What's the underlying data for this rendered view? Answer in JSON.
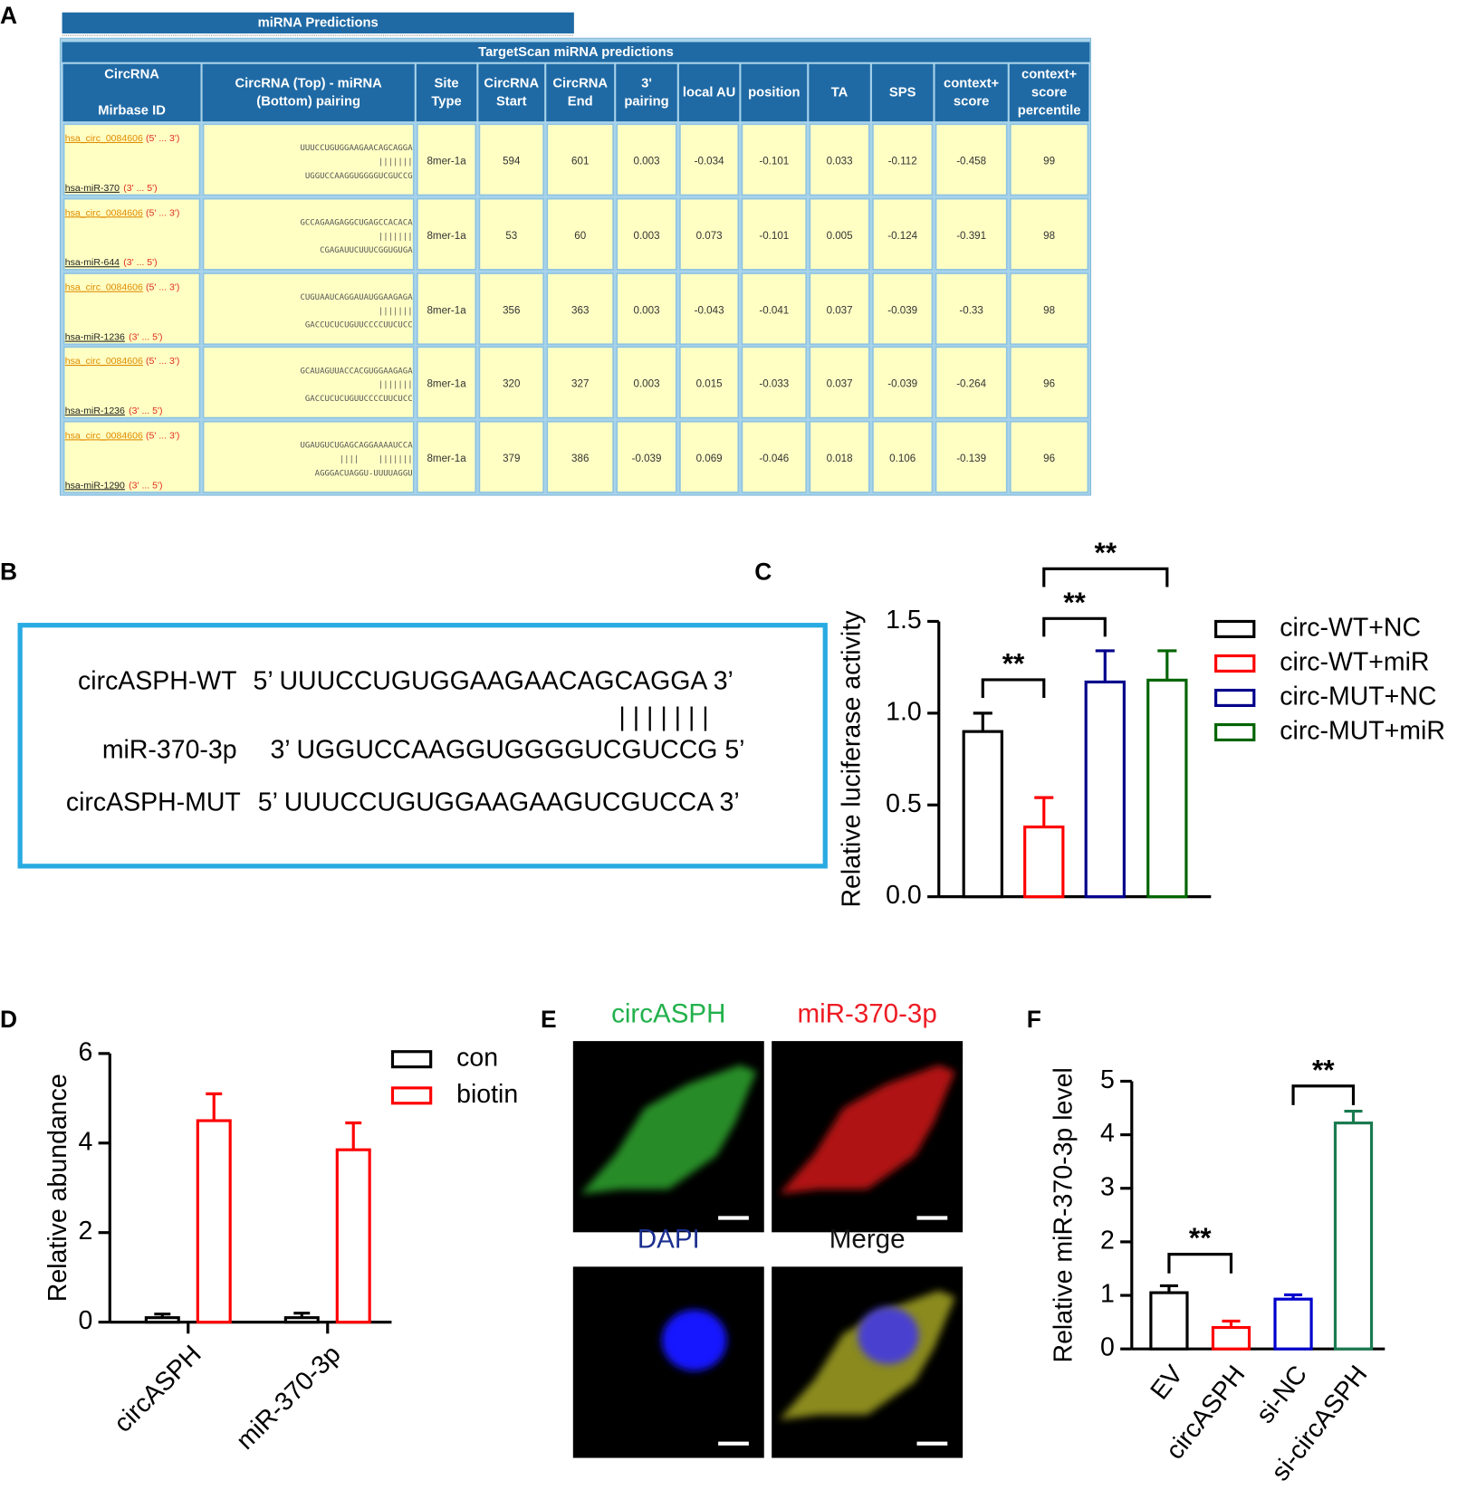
{
  "panels": {
    "A": {
      "label": "A",
      "header": "miRNA Predictions",
      "table": {
        "title": "TargetScan miRNA predictions",
        "columns": [
          [
            "CircRNA",
            "Mirbase ID"
          ],
          [
            "CircRNA (Top) - miRNA",
            "(Bottom) pairing"
          ],
          [
            "Site",
            "Type"
          ],
          [
            "CircRNA",
            "Start"
          ],
          [
            "CircRNA",
            "End"
          ],
          [
            "3'",
            "pairing"
          ],
          [
            "local AU"
          ],
          [
            "position"
          ],
          [
            "TA"
          ],
          [
            "SPS"
          ],
          [
            "context+",
            "score"
          ],
          [
            "context+",
            "score",
            "percentile"
          ]
        ],
        "rows": [
          {
            "circrna": "hsa_circ_0084606",
            "circrna_ends": "(5' ... 3')",
            "mirna": "hsa-miR-370",
            "mirna_ends": "(3' ... 5')",
            "top": "UUUCCUGUGGAAGAACAGCAGGA",
            "pairs": "|||||||",
            "bottom": "UGGUCCAAGGUGGGGUCGUCCG",
            "cells": [
              "8mer-1a",
              594,
              601,
              0.003,
              -0.034,
              -0.101,
              0.033,
              -0.112,
              -0.458,
              99
            ]
          },
          {
            "circrna": "hsa_circ_0084606",
            "circrna_ends": "(5' ... 3')",
            "mirna": "hsa-miR-644",
            "mirna_ends": "(3' ... 5')",
            "top": "GCCAGAAGAGGCUGAGCCACACA",
            "pairs": "|||||||",
            "bottom": "CGAGAUUCUUUCGGUGUGA",
            "cells": [
              "8mer-1a",
              53,
              60,
              0.003,
              0.073,
              -0.101,
              0.005,
              -0.124,
              -0.391,
              98
            ]
          },
          {
            "circrna": "hsa_circ_0084606",
            "circrna_ends": "(5' ... 3')",
            "mirna": "hsa-miR-1236",
            "mirna_ends": "(3' ... 5')",
            "top": "CUGUAAUCAGGAUAUGGAAGAGA",
            "pairs": "|||||||",
            "bottom": "GACCUCUCUGUUCCCCUUCUCC",
            "cells": [
              "8mer-1a",
              356,
              363,
              0.003,
              -0.043,
              -0.041,
              0.037,
              -0.039,
              -0.33,
              98
            ]
          },
          {
            "circrna": "hsa_circ_0084606",
            "circrna_ends": "(5' ... 3')",
            "mirna": "hsa-miR-1236",
            "mirna_ends": "(3' ... 5')",
            "top": "GCAUAGUUACCACGUGGAAGAGA",
            "pairs": "|||||||",
            "bottom": "GACCUCUCUGUUCCCCUUCUCC",
            "cells": [
              "8mer-1a",
              320,
              327,
              0.003,
              0.015,
              -0.033,
              0.037,
              -0.039,
              -0.264,
              96
            ]
          },
          {
            "circrna": "hsa_circ_0084606",
            "circrna_ends": "(5' ... 3')",
            "mirna": "hsa-miR-1290",
            "mirna_ends": "(3' ... 5')",
            "top": "UGAUGUCUGAGCAGGAAAAUCCA",
            "pairs": "||||    |||||||",
            "bottom": "AGGGACUAGGU-UUUUAGGU",
            "cells": [
              "8mer-1a",
              379,
              386,
              -0.039,
              0.069,
              -0.046,
              0.018,
              0.106,
              -0.139,
              96
            ]
          }
        ]
      }
    },
    "B": {
      "label": "B",
      "rows": [
        {
          "name": "circASPH-WT",
          "seq": "5’ UUUCCUGUGGAAGAACAGCAGGA 3’"
        },
        {
          "name": "miR-370-3p",
          "seq": "3’ UGGUCCAAGGUGGGGUCGUCCG 5’"
        },
        {
          "name": "circASPH-MUT",
          "seq": "5’ UUUCCUGUGGAAGAAGUCGUCCA 3’"
        }
      ],
      "pairs": "| | | | | | |"
    },
    "E": {
      "label": "E",
      "images": [
        {
          "title": "circASPH",
          "color": "#22b14c"
        },
        {
          "title": "miR-370-3p",
          "color": "#ed1c24"
        },
        {
          "title": "DAPI",
          "color": "#1b2f8f"
        },
        {
          "title": "Merge",
          "color": "#111111"
        }
      ]
    }
  },
  "chart_data": [
    {
      "label": "C",
      "type": "bar",
      "ylabel": "Relative luciferase activity",
      "ylim": [
        0,
        1.5
      ],
      "yticks": [
        {
          "value": 0,
          "label": "0.0"
        },
        {
          "value": 0.5,
          "label": "0.5"
        },
        {
          "value": 1,
          "label": "1.0"
        },
        {
          "value": 1.5,
          "label": "1.5"
        }
      ],
      "series": [
        {
          "name": "circ-WT+NC",
          "color": "#000000",
          "values": [
            0.9
          ],
          "errors": [
            0.1
          ]
        },
        {
          "name": "circ-WT+miR",
          "color": "#ff0000",
          "values": [
            0.38
          ],
          "errors": [
            0.16
          ]
        },
        {
          "name": "circ-MUT+NC",
          "color": "#00008b",
          "values": [
            1.17
          ],
          "errors": [
            0.17
          ]
        },
        {
          "name": "circ-MUT+miR",
          "color": "#006400",
          "values": [
            1.18
          ],
          "errors": [
            0.16
          ]
        }
      ],
      "annotations": [
        "**",
        "**",
        "**"
      ]
    },
    {
      "label": "D",
      "type": "bar",
      "ylabel": "Relative abundance",
      "categories": [
        "circASPH",
        "miR-370-3p"
      ],
      "ylim": [
        0,
        6
      ],
      "yticks": [
        0,
        2,
        4,
        6
      ],
      "series": [
        {
          "name": "con",
          "color": "#000000",
          "values": [
            0.1,
            0.1
          ],
          "errors": [
            0.08,
            0.1
          ]
        },
        {
          "name": "biotin",
          "color": "#ff0000",
          "values": [
            4.5,
            3.85
          ],
          "errors": [
            0.6,
            0.6
          ]
        }
      ]
    },
    {
      "label": "F",
      "type": "bar",
      "ylabel": "Relative miR-370-3p level",
      "categories": [
        "EV",
        "circASPH",
        "si-NC",
        "si-circASPH"
      ],
      "values": [
        1.05,
        0.4,
        0.93,
        4.22
      ],
      "errors": [
        0.13,
        0.12,
        0.08,
        0.22
      ],
      "colors": [
        "#000000",
        "#ff0000",
        "#0000cd",
        "#1a7a50"
      ],
      "ylim": [
        0,
        5
      ],
      "yticks": [
        0,
        1,
        2,
        3,
        4,
        5
      ],
      "annotations": [
        "**",
        "**"
      ]
    }
  ]
}
